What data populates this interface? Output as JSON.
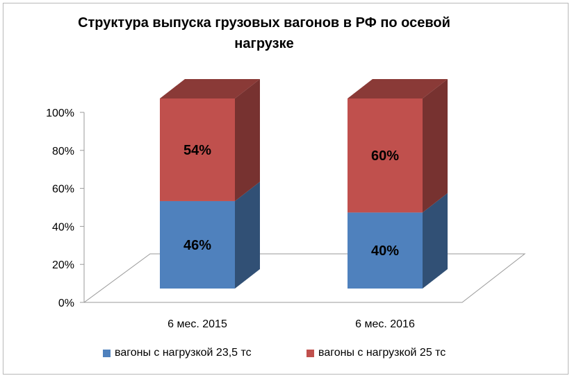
{
  "chart_data": {
    "type": "bar",
    "stacked": true,
    "three_d": true,
    "title": "Структура выпуска грузовых вагонов в РФ по осевой\nнагрузке",
    "categories": [
      "6 мес. 2015",
      "6 мес. 2016"
    ],
    "series": [
      {
        "name": "вагоны с нагрузкой 23,5 тс",
        "values": [
          46,
          40
        ],
        "labels": [
          "46%",
          "40%"
        ],
        "color": "#4f81bd"
      },
      {
        "name": "вагоны с нагрузкой 25 тс",
        "values": [
          54,
          60
        ],
        "labels": [
          "54%",
          "60%"
        ],
        "color": "#c0504d"
      }
    ],
    "y_ticks": [
      "0%",
      "20%",
      "40%",
      "60%",
      "80%",
      "100%"
    ],
    "ylim": [
      0,
      100
    ],
    "grid": false,
    "legend_position": "bottom"
  }
}
